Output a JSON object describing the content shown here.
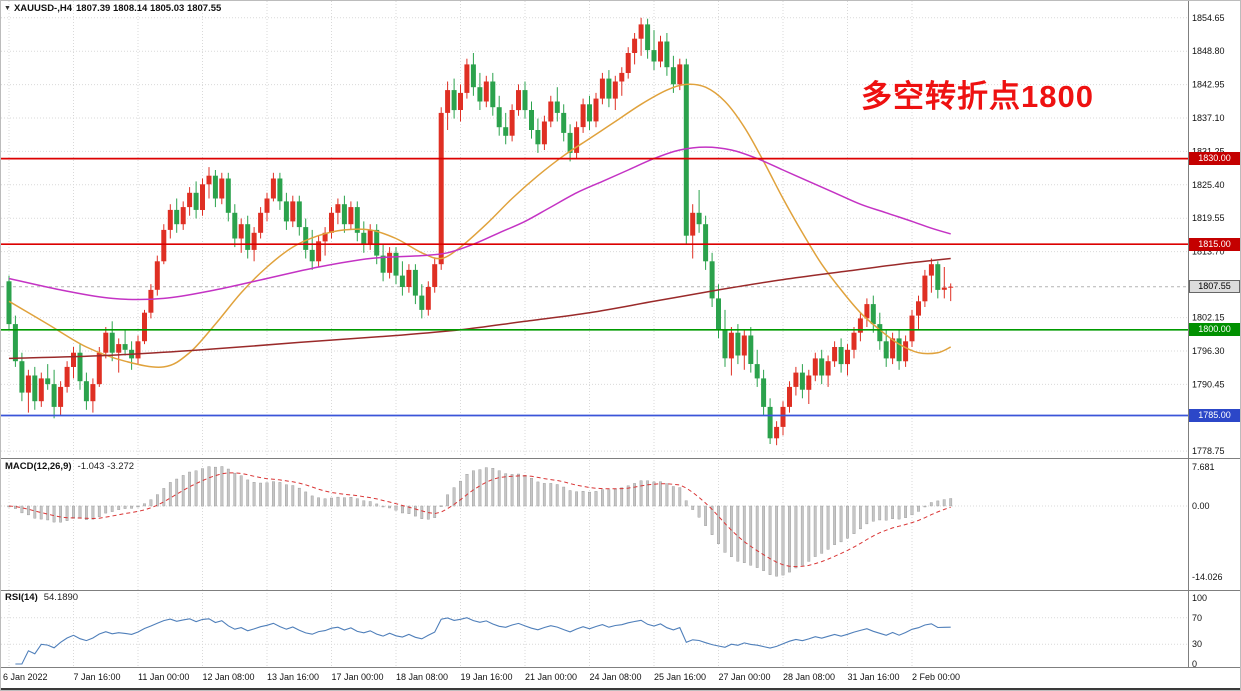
{
  "header": {
    "collapse_icon": "▼",
    "symbol": "XAUUSD-,H4",
    "ohlc_values": "1807.39 1808.14 1805.03 1807.55"
  },
  "annotation": {
    "text": "多空转折点1800",
    "color": "#ee1111"
  },
  "colors": {
    "bull": "#df2f23",
    "bear": "#2ba24c",
    "grid": "#d9d9d9",
    "separator": "#7f7f7f",
    "axis_text": "#111111",
    "hist": "#c6c6c6",
    "hist_border": "#8a8a8a",
    "current_line": "#b4b4b4"
  },
  "chart_data": {
    "type": "candlestick",
    "title": "XAUUSD- H4",
    "bars": 147,
    "x_tick_interval": 10,
    "x_tick_labels": [
      "6 Jan 2022",
      "7 Jan 16:00",
      "11 Jan 00:00",
      "12 Jan 08:00",
      "13 Jan 16:00",
      "17 Jan 00:00",
      "18 Jan 08:00",
      "19 Jan 16:00",
      "21 Jan 00:00",
      "24 Jan 08:00",
      "25 Jan 16:00",
      "27 Jan 00:00",
      "28 Jan 08:00",
      "31 Jan 16:00",
      "2 Feb 00:00"
    ],
    "ylim": [
      1777.9,
      1857.6
    ],
    "price_ticks": [
      1854.65,
      1848.8,
      1842.95,
      1837.1,
      1831.25,
      1825.4,
      1819.55,
      1813.7,
      1802.15,
      1796.3,
      1790.45,
      1778.75
    ],
    "candles": [
      [
        1808.5,
        1809.5,
        1800.0,
        1801.0
      ],
      [
        1801.0,
        1802.5,
        1793.5,
        1794.5
      ],
      [
        1794.5,
        1796.0,
        1787.5,
        1789.0
      ],
      [
        1789.0,
        1793.0,
        1785.5,
        1792.0
      ],
      [
        1792.0,
        1793.5,
        1786.0,
        1787.5
      ],
      [
        1787.5,
        1792.5,
        1786.5,
        1791.5
      ],
      [
        1791.5,
        1794.0,
        1789.5,
        1790.5
      ],
      [
        1790.5,
        1793.0,
        1784.5,
        1786.5
      ],
      [
        1786.5,
        1791.0,
        1785.0,
        1790.0
      ],
      [
        1790.0,
        1794.5,
        1789.0,
        1793.5
      ],
      [
        1793.5,
        1797.0,
        1791.5,
        1796.0
      ],
      [
        1796.0,
        1797.5,
        1789.5,
        1791.0
      ],
      [
        1791.0,
        1792.5,
        1786.0,
        1787.5
      ],
      [
        1787.5,
        1791.5,
        1785.5,
        1790.5
      ],
      [
        1790.5,
        1797.0,
        1790.0,
        1796.0
      ],
      [
        1796.0,
        1800.5,
        1795.0,
        1799.5
      ],
      [
        1799.5,
        1801.5,
        1794.5,
        1796.0
      ],
      [
        1796.0,
        1798.5,
        1792.5,
        1797.5
      ],
      [
        1797.5,
        1800.0,
        1795.5,
        1796.5
      ],
      [
        1796.5,
        1798.0,
        1793.0,
        1795.0
      ],
      [
        1795.0,
        1799.0,
        1794.0,
        1798.0
      ],
      [
        1798.0,
        1803.5,
        1797.5,
        1803.0
      ],
      [
        1803.0,
        1808.0,
        1802.0,
        1807.0
      ],
      [
        1807.0,
        1813.0,
        1806.0,
        1812.0
      ],
      [
        1812.0,
        1818.5,
        1811.5,
        1817.5
      ],
      [
        1817.5,
        1822.0,
        1816.0,
        1821.0
      ],
      [
        1821.0,
        1823.0,
        1817.0,
        1818.5
      ],
      [
        1818.5,
        1822.5,
        1817.5,
        1821.5
      ],
      [
        1821.5,
        1825.0,
        1820.0,
        1824.0
      ],
      [
        1824.0,
        1826.0,
        1819.5,
        1821.0
      ],
      [
        1821.0,
        1826.5,
        1820.0,
        1825.5
      ],
      [
        1825.5,
        1828.5,
        1823.0,
        1827.0
      ],
      [
        1827.0,
        1828.0,
        1821.5,
        1823.0
      ],
      [
        1823.0,
        1827.5,
        1822.0,
        1826.5
      ],
      [
        1826.5,
        1827.5,
        1819.0,
        1820.5
      ],
      [
        1820.5,
        1822.0,
        1814.5,
        1816.0
      ],
      [
        1816.0,
        1819.5,
        1813.5,
        1818.5
      ],
      [
        1818.5,
        1820.0,
        1812.5,
        1814.0
      ],
      [
        1814.0,
        1818.0,
        1812.0,
        1817.0
      ],
      [
        1817.0,
        1821.5,
        1816.0,
        1820.5
      ],
      [
        1820.5,
        1824.0,
        1819.0,
        1823.0
      ],
      [
        1823.0,
        1827.5,
        1822.5,
        1826.5
      ],
      [
        1826.5,
        1827.5,
        1821.0,
        1822.5
      ],
      [
        1822.5,
        1824.0,
        1817.5,
        1819.0
      ],
      [
        1819.0,
        1823.5,
        1818.0,
        1822.5
      ],
      [
        1822.5,
        1823.5,
        1816.5,
        1818.0
      ],
      [
        1818.0,
        1819.5,
        1812.5,
        1814.0
      ],
      [
        1814.0,
        1817.5,
        1810.5,
        1812.0
      ],
      [
        1812.0,
        1816.5,
        1811.0,
        1815.5
      ],
      [
        1815.5,
        1818.0,
        1813.0,
        1817.0
      ],
      [
        1817.0,
        1821.5,
        1816.0,
        1820.5
      ],
      [
        1820.5,
        1823.0,
        1818.5,
        1822.0
      ],
      [
        1822.0,
        1823.5,
        1817.0,
        1818.5
      ],
      [
        1818.5,
        1822.5,
        1817.5,
        1821.5
      ],
      [
        1821.5,
        1822.5,
        1815.5,
        1817.0
      ],
      [
        1817.0,
        1819.0,
        1813.5,
        1815.0
      ],
      [
        1815.0,
        1818.5,
        1814.0,
        1817.5
      ],
      [
        1817.5,
        1818.5,
        1811.5,
        1813.0
      ],
      [
        1813.0,
        1815.0,
        1808.5,
        1810.0
      ],
      [
        1810.0,
        1814.5,
        1809.0,
        1813.5
      ],
      [
        1813.5,
        1814.5,
        1808.0,
        1809.5
      ],
      [
        1809.5,
        1812.0,
        1806.0,
        1807.5
      ],
      [
        1807.5,
        1811.5,
        1806.5,
        1810.5
      ],
      [
        1810.5,
        1811.5,
        1804.5,
        1806.0
      ],
      [
        1806.0,
        1808.0,
        1802.0,
        1803.5
      ],
      [
        1803.5,
        1808.5,
        1802.5,
        1807.5
      ],
      [
        1807.5,
        1812.5,
        1806.5,
        1811.5
      ],
      [
        1811.5,
        1839.0,
        1810.5,
        1838.0
      ],
      [
        1838.0,
        1843.5,
        1835.0,
        1842.0
      ],
      [
        1842.0,
        1844.0,
        1837.0,
        1838.5
      ],
      [
        1838.5,
        1843.0,
        1836.5,
        1841.5
      ],
      [
        1841.5,
        1847.5,
        1840.5,
        1846.5
      ],
      [
        1846.5,
        1848.5,
        1841.0,
        1842.5
      ],
      [
        1842.5,
        1845.0,
        1838.5,
        1840.0
      ],
      [
        1840.0,
        1844.5,
        1839.0,
        1843.5
      ],
      [
        1843.5,
        1845.0,
        1837.5,
        1839.0
      ],
      [
        1839.0,
        1841.0,
        1834.0,
        1835.5
      ],
      [
        1835.5,
        1838.0,
        1832.5,
        1834.0
      ],
      [
        1834.0,
        1839.5,
        1833.0,
        1838.5
      ],
      [
        1838.5,
        1843.0,
        1837.5,
        1842.0
      ],
      [
        1842.0,
        1843.5,
        1837.0,
        1838.5
      ],
      [
        1838.5,
        1840.0,
        1833.5,
        1835.0
      ],
      [
        1835.0,
        1837.0,
        1831.0,
        1832.5
      ],
      [
        1832.5,
        1837.5,
        1831.5,
        1836.5
      ],
      [
        1836.5,
        1841.0,
        1835.5,
        1840.0
      ],
      [
        1840.0,
        1842.5,
        1836.5,
        1838.0
      ],
      [
        1838.0,
        1839.5,
        1833.0,
        1834.5
      ],
      [
        1834.5,
        1836.0,
        1829.5,
        1831.0
      ],
      [
        1831.0,
        1836.5,
        1830.0,
        1835.5
      ],
      [
        1835.5,
        1840.5,
        1834.5,
        1839.5
      ],
      [
        1839.5,
        1841.0,
        1835.0,
        1836.5
      ],
      [
        1836.5,
        1841.5,
        1835.5,
        1840.5
      ],
      [
        1840.5,
        1845.0,
        1839.5,
        1844.0
      ],
      [
        1844.0,
        1845.5,
        1839.0,
        1840.5
      ],
      [
        1840.5,
        1844.5,
        1838.5,
        1843.5
      ],
      [
        1843.5,
        1846.0,
        1841.0,
        1845.0
      ],
      [
        1845.0,
        1849.5,
        1844.0,
        1848.5
      ],
      [
        1848.5,
        1852.0,
        1846.5,
        1851.0
      ],
      [
        1851.0,
        1854.65,
        1848.0,
        1853.5
      ],
      [
        1853.5,
        1854.5,
        1847.5,
        1849.0
      ],
      [
        1849.0,
        1852.5,
        1845.5,
        1847.0
      ],
      [
        1847.0,
        1851.5,
        1846.0,
        1850.5
      ],
      [
        1850.5,
        1852.0,
        1844.5,
        1846.0
      ],
      [
        1846.0,
        1848.0,
        1841.5,
        1843.0
      ],
      [
        1843.0,
        1847.5,
        1842.0,
        1846.5
      ],
      [
        1846.5,
        1847.5,
        1815.0,
        1816.5
      ],
      [
        1816.5,
        1822.0,
        1812.5,
        1820.5
      ],
      [
        1820.5,
        1824.5,
        1817.0,
        1818.5
      ],
      [
        1818.5,
        1820.0,
        1810.5,
        1812.0
      ],
      [
        1812.0,
        1813.5,
        1804.0,
        1805.5
      ],
      [
        1805.5,
        1808.0,
        1798.5,
        1800.0
      ],
      [
        1800.0,
        1803.5,
        1793.5,
        1795.0
      ],
      [
        1795.0,
        1800.5,
        1792.0,
        1799.5
      ],
      [
        1799.5,
        1801.0,
        1794.0,
        1795.5
      ],
      [
        1795.5,
        1800.0,
        1793.0,
        1799.0
      ],
      [
        1799.0,
        1800.5,
        1792.5,
        1794.0
      ],
      [
        1794.0,
        1796.5,
        1790.0,
        1791.5
      ],
      [
        1791.5,
        1793.0,
        1785.0,
        1786.5
      ],
      [
        1786.5,
        1788.0,
        1780.0,
        1781.0
      ],
      [
        1781.0,
        1784.0,
        1779.8,
        1783.0
      ],
      [
        1783.0,
        1787.5,
        1781.5,
        1786.5
      ],
      [
        1786.5,
        1791.0,
        1785.5,
        1790.0
      ],
      [
        1790.0,
        1793.5,
        1788.5,
        1792.5
      ],
      [
        1792.5,
        1794.0,
        1788.0,
        1789.5
      ],
      [
        1789.5,
        1793.0,
        1787.0,
        1792.0
      ],
      [
        1792.0,
        1796.0,
        1791.0,
        1795.0
      ],
      [
        1795.0,
        1796.5,
        1790.5,
        1792.0
      ],
      [
        1792.0,
        1795.5,
        1790.0,
        1794.5
      ],
      [
        1794.5,
        1798.0,
        1793.5,
        1797.0
      ],
      [
        1797.0,
        1798.5,
        1792.5,
        1794.0
      ],
      [
        1794.0,
        1797.5,
        1792.0,
        1796.5
      ],
      [
        1796.5,
        1800.5,
        1795.0,
        1799.5
      ],
      [
        1799.5,
        1803.0,
        1798.0,
        1802.0
      ],
      [
        1802.0,
        1805.5,
        1800.5,
        1804.5
      ],
      [
        1804.5,
        1806.0,
        1799.5,
        1801.0
      ],
      [
        1801.0,
        1803.0,
        1796.5,
        1798.0
      ],
      [
        1798.0,
        1800.0,
        1793.5,
        1795.0
      ],
      [
        1795.0,
        1799.5,
        1794.0,
        1798.5
      ],
      [
        1798.5,
        1800.0,
        1793.0,
        1794.5
      ],
      [
        1794.5,
        1799.0,
        1793.5,
        1798.0
      ],
      [
        1798.0,
        1803.5,
        1797.0,
        1802.5
      ],
      [
        1802.5,
        1806.0,
        1800.0,
        1805.0
      ],
      [
        1805.0,
        1810.5,
        1804.0,
        1809.5
      ],
      [
        1809.5,
        1812.5,
        1806.5,
        1811.5
      ],
      [
        1811.5,
        1812.0,
        1805.5,
        1807.0
      ],
      [
        1807.0,
        1811.0,
        1805.5,
        1807.39
      ],
      [
        1807.39,
        1808.14,
        1805.03,
        1807.55
      ]
    ],
    "hlines": [
      {
        "price": 1830.0,
        "label": "1830.00",
        "color": "#dc0000",
        "badge_bg": "#c40000"
      },
      {
        "price": 1815.0,
        "label": "1815.00",
        "color": "#dc0000",
        "badge_bg": "#c40000"
      },
      {
        "price": 1800.0,
        "label": "1800.00",
        "color": "#009a00",
        "badge_bg": "#009000"
      },
      {
        "price": 1785.0,
        "label": "1785.00",
        "color": "#3a55d9",
        "badge_bg": "#2c47c8"
      }
    ],
    "current_price": {
      "value": 1807.55,
      "label": "1807.55"
    },
    "overlays": [
      {
        "name": "ma-fast-orange",
        "color": "#e0a23c",
        "points": [
          [
            0,
            1805
          ],
          [
            6,
            1801
          ],
          [
            12,
            1797
          ],
          [
            18,
            1794.5
          ],
          [
            24,
            1793.5
          ],
          [
            28,
            1796
          ],
          [
            32,
            1801
          ],
          [
            36,
            1806.5
          ],
          [
            40,
            1811
          ],
          [
            44,
            1814.5
          ],
          [
            48,
            1816.5
          ],
          [
            52,
            1817.5
          ],
          [
            56,
            1817.5
          ],
          [
            60,
            1816
          ],
          [
            64,
            1813.5
          ],
          [
            67,
            1812.5
          ],
          [
            70,
            1814.5
          ],
          [
            74,
            1818.5
          ],
          [
            78,
            1823
          ],
          [
            82,
            1827
          ],
          [
            86,
            1830.5
          ],
          [
            90,
            1833.5
          ],
          [
            94,
            1836.5
          ],
          [
            98,
            1839.5
          ],
          [
            102,
            1842
          ],
          [
            105,
            1843
          ],
          [
            108,
            1842.5
          ],
          [
            111,
            1840
          ],
          [
            114,
            1835.5
          ],
          [
            117,
            1829.5
          ],
          [
            120,
            1823
          ],
          [
            123,
            1817
          ],
          [
            126,
            1811.5
          ],
          [
            129,
            1807
          ],
          [
            132,
            1803
          ],
          [
            135,
            1800
          ],
          [
            138,
            1797.5
          ],
          [
            141,
            1796
          ],
          [
            144,
            1796
          ],
          [
            146,
            1797
          ]
        ]
      },
      {
        "name": "ma-mid-magenta",
        "color": "#c433c4",
        "points": [
          [
            0,
            1809
          ],
          [
            8,
            1807
          ],
          [
            16,
            1805.5
          ],
          [
            24,
            1805.5
          ],
          [
            32,
            1807
          ],
          [
            40,
            1809
          ],
          [
            48,
            1811
          ],
          [
            56,
            1812.5
          ],
          [
            64,
            1813
          ],
          [
            68,
            1813.5
          ],
          [
            72,
            1815
          ],
          [
            76,
            1817
          ],
          [
            80,
            1819
          ],
          [
            84,
            1821.5
          ],
          [
            88,
            1824
          ],
          [
            92,
            1826
          ],
          [
            96,
            1828
          ],
          [
            100,
            1830
          ],
          [
            104,
            1831.5
          ],
          [
            108,
            1832
          ],
          [
            112,
            1831.5
          ],
          [
            116,
            1830
          ],
          [
            120,
            1828
          ],
          [
            124,
            1826
          ],
          [
            128,
            1824
          ],
          [
            132,
            1822
          ],
          [
            136,
            1820.5
          ],
          [
            140,
            1819
          ],
          [
            143,
            1817.8
          ],
          [
            146,
            1816.8
          ]
        ]
      },
      {
        "name": "ma-slow-darkred",
        "color": "#9a2a2a",
        "points": [
          [
            0,
            1795
          ],
          [
            15,
            1795.5
          ],
          [
            30,
            1796.5
          ],
          [
            45,
            1797.8
          ],
          [
            60,
            1799
          ],
          [
            70,
            1800
          ],
          [
            80,
            1801.5
          ],
          [
            90,
            1803
          ],
          [
            100,
            1805
          ],
          [
            110,
            1807
          ],
          [
            120,
            1808.8
          ],
          [
            130,
            1810.3
          ],
          [
            138,
            1811.5
          ],
          [
            146,
            1812.5
          ]
        ]
      }
    ],
    "indicators": [
      {
        "name": "MACD",
        "label": "MACD(12,26,9)",
        "values": "-1.043 -3.272",
        "params": {
          "fast": 12,
          "slow": 26,
          "signal": 9
        },
        "ticks": [
          7.681,
          0,
          -14.026
        ],
        "tick_labels": [
          "7.681",
          "0.00",
          "-14.026"
        ],
        "range": [
          -16.4,
          8.5
        ],
        "signal_color": "#d93535"
      },
      {
        "name": "RSI",
        "label": "RSI(14)",
        "value": "54.1890",
        "period": 14,
        "ticks": [
          100,
          70,
          30,
          0
        ],
        "tick_labels": [
          "100",
          "70",
          "30",
          "0"
        ],
        "levels": [
          70,
          30
        ],
        "range": [
          0,
          100
        ],
        "line_color": "#4f7fba"
      }
    ]
  }
}
